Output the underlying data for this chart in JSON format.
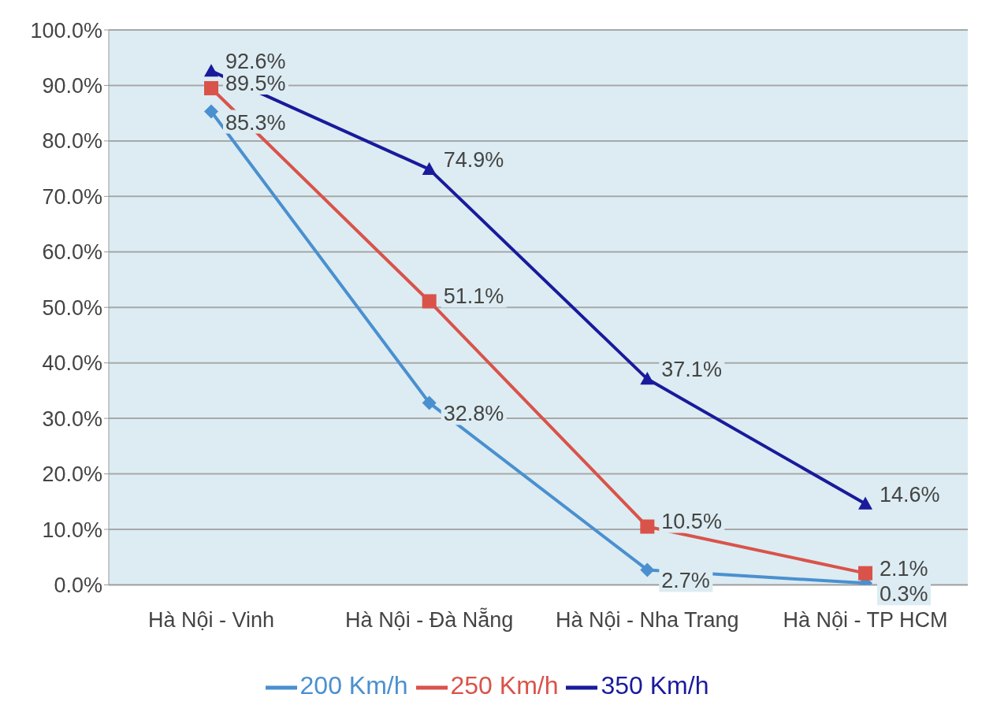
{
  "chart_data": {
    "type": "line",
    "categories": [
      "Hà Nội - Vinh",
      "Hà Nội - Đà Nẵng",
      "Hà Nội - Nha Trang",
      "Hà Nội - TP HCM"
    ],
    "series": [
      {
        "name": "200 Km/h",
        "color": "#4a90d0",
        "marker": "diamond",
        "values": [
          85.3,
          32.8,
          2.7,
          0.3
        ],
        "value_labels": [
          "85.3%",
          "32.8%",
          "2.7%",
          "0.3%"
        ]
      },
      {
        "name": "250 Km/h",
        "color": "#d9534a",
        "marker": "square",
        "values": [
          89.5,
          51.1,
          10.5,
          2.1
        ],
        "value_labels": [
          "89.5%",
          "51.1%",
          "10.5%",
          "2.1%"
        ]
      },
      {
        "name": "350 Km/h",
        "color": "#1a1a9c",
        "marker": "triangle",
        "values": [
          92.6,
          74.9,
          37.1,
          14.6
        ],
        "value_labels": [
          "92.6%",
          "74.9%",
          "37.1%",
          "14.6%"
        ]
      }
    ],
    "ylim": [
      0,
      100
    ],
    "yticks": [
      {
        "value": 0,
        "label": "0.0%"
      },
      {
        "value": 10,
        "label": "10.0%"
      },
      {
        "value": 20,
        "label": "20.0%"
      },
      {
        "value": 30,
        "label": "30.0%"
      },
      {
        "value": 40,
        "label": "40.0%"
      },
      {
        "value": 50,
        "label": "50.0%"
      },
      {
        "value": 60,
        "label": "60.0%"
      },
      {
        "value": 70,
        "label": "70.0%"
      },
      {
        "value": 80,
        "label": "80.0%"
      },
      {
        "value": 90,
        "label": "90.0%"
      },
      {
        "value": 100,
        "label": "100.0%"
      }
    ],
    "grid": "y",
    "legend": "bottom"
  }
}
